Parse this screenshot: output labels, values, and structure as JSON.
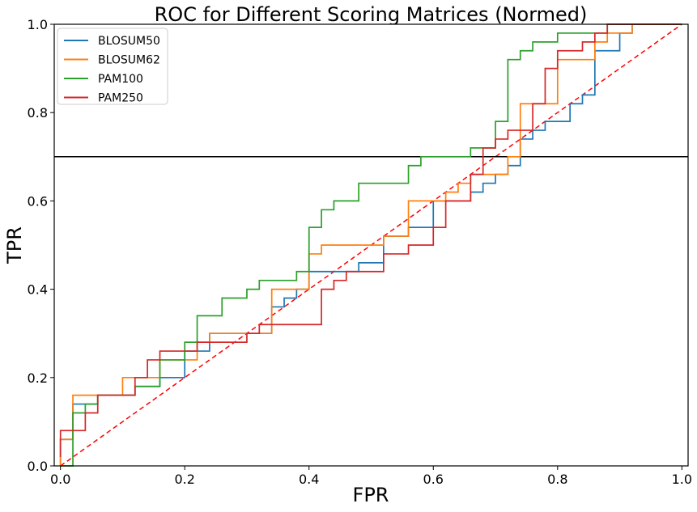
{
  "chart_data": {
    "type": "line",
    "title": "ROC for Different Scoring Matrices (Normed)",
    "xlabel": "FPR",
    "ylabel": "TPR",
    "xlim": [
      -0.01,
      1.01
    ],
    "ylim": [
      0.0,
      1.0
    ],
    "x_ticks": [
      0.0,
      0.2,
      0.4,
      0.6,
      0.8,
      1.0
    ],
    "y_ticks": [
      0.0,
      0.2,
      0.4,
      0.6,
      0.8,
      1.0
    ],
    "x_tick_labels": [
      "0.0",
      "0.2",
      "0.4",
      "0.6",
      "0.8",
      "1.0"
    ],
    "y_tick_labels": [
      "0.0",
      "0.2",
      "0.4",
      "0.6",
      "0.8",
      "1.0"
    ],
    "grid": false,
    "legend_position": "top-left",
    "series": [
      {
        "name": "BLOSUM50",
        "color": "#1f77b4",
        "x": [
          0.0,
          0.0,
          0.02,
          0.02,
          0.06,
          0.06,
          0.12,
          0.12,
          0.14,
          0.14,
          0.16,
          0.16,
          0.2,
          0.2,
          0.24,
          0.24,
          0.32,
          0.32,
          0.34,
          0.34,
          0.36,
          0.36,
          0.38,
          0.38,
          0.4,
          0.4,
          0.48,
          0.48,
          0.52,
          0.52,
          0.56,
          0.56,
          0.6,
          0.6,
          0.66,
          0.66,
          0.68,
          0.68,
          0.7,
          0.7,
          0.72,
          0.72,
          0.74,
          0.74,
          0.76,
          0.76,
          0.78,
          0.78,
          0.82,
          0.82,
          0.84,
          0.84,
          0.86,
          0.86,
          0.9,
          0.9,
          0.92,
          0.92,
          1.0
        ],
        "y": [
          0.0,
          0.06,
          0.06,
          0.14,
          0.14,
          0.16,
          0.16,
          0.18,
          0.18,
          0.18,
          0.18,
          0.2,
          0.2,
          0.26,
          0.26,
          0.3,
          0.3,
          0.3,
          0.3,
          0.36,
          0.36,
          0.38,
          0.38,
          0.4,
          0.4,
          0.44,
          0.44,
          0.46,
          0.46,
          0.52,
          0.52,
          0.54,
          0.54,
          0.6,
          0.6,
          0.62,
          0.62,
          0.64,
          0.64,
          0.66,
          0.66,
          0.68,
          0.68,
          0.74,
          0.74,
          0.76,
          0.76,
          0.78,
          0.78,
          0.82,
          0.82,
          0.84,
          0.84,
          0.94,
          0.94,
          0.98,
          0.98,
          1.0,
          1.0
        ]
      },
      {
        "name": "BLOSUM62",
        "color": "#ff7f0e",
        "x": [
          0.0,
          0.0,
          0.02,
          0.02,
          0.06,
          0.06,
          0.1,
          0.1,
          0.16,
          0.16,
          0.22,
          0.22,
          0.24,
          0.24,
          0.34,
          0.34,
          0.4,
          0.4,
          0.42,
          0.42,
          0.52,
          0.52,
          0.56,
          0.56,
          0.62,
          0.62,
          0.64,
          0.64,
          0.66,
          0.66,
          0.72,
          0.72,
          0.74,
          0.74,
          0.8,
          0.8,
          0.86,
          0.86,
          0.88,
          0.88,
          0.92,
          0.92,
          1.0
        ],
        "y": [
          0.0,
          0.06,
          0.06,
          0.16,
          0.16,
          0.16,
          0.16,
          0.2,
          0.2,
          0.24,
          0.24,
          0.28,
          0.28,
          0.3,
          0.3,
          0.4,
          0.4,
          0.48,
          0.48,
          0.5,
          0.5,
          0.52,
          0.52,
          0.6,
          0.6,
          0.62,
          0.62,
          0.64,
          0.64,
          0.66,
          0.66,
          0.7,
          0.7,
          0.82,
          0.82,
          0.92,
          0.92,
          0.96,
          0.96,
          0.98,
          0.98,
          1.0,
          1.0
        ]
      },
      {
        "name": "PAM100",
        "color": "#2ca02c",
        "x": [
          0.0,
          0.02,
          0.02,
          0.04,
          0.04,
          0.06,
          0.06,
          0.12,
          0.12,
          0.14,
          0.14,
          0.16,
          0.16,
          0.2,
          0.2,
          0.22,
          0.22,
          0.26,
          0.26,
          0.3,
          0.3,
          0.32,
          0.32,
          0.38,
          0.38,
          0.4,
          0.4,
          0.42,
          0.42,
          0.44,
          0.44,
          0.48,
          0.48,
          0.56,
          0.56,
          0.58,
          0.58,
          0.66,
          0.66,
          0.7,
          0.7,
          0.72,
          0.72,
          0.74,
          0.74,
          0.76,
          0.76,
          0.8,
          0.8,
          0.86,
          0.86,
          0.88,
          0.88,
          1.0
        ],
        "y": [
          0.0,
          0.0,
          0.12,
          0.12,
          0.14,
          0.14,
          0.16,
          0.16,
          0.18,
          0.18,
          0.18,
          0.18,
          0.24,
          0.24,
          0.28,
          0.28,
          0.34,
          0.34,
          0.38,
          0.38,
          0.4,
          0.4,
          0.42,
          0.42,
          0.44,
          0.44,
          0.54,
          0.54,
          0.58,
          0.58,
          0.6,
          0.6,
          0.64,
          0.64,
          0.68,
          0.68,
          0.7,
          0.7,
          0.72,
          0.72,
          0.78,
          0.78,
          0.92,
          0.92,
          0.94,
          0.94,
          0.96,
          0.96,
          0.98,
          0.98,
          0.98,
          0.98,
          1.0,
          1.0
        ]
      },
      {
        "name": "PAM250",
        "color": "#d62728",
        "x": [
          0.0,
          0.0,
          0.04,
          0.04,
          0.06,
          0.06,
          0.12,
          0.12,
          0.14,
          0.14,
          0.16,
          0.16,
          0.22,
          0.22,
          0.3,
          0.3,
          0.32,
          0.32,
          0.42,
          0.42,
          0.44,
          0.44,
          0.46,
          0.46,
          0.52,
          0.52,
          0.56,
          0.56,
          0.6,
          0.6,
          0.62,
          0.62,
          0.66,
          0.66,
          0.68,
          0.68,
          0.7,
          0.7,
          0.72,
          0.72,
          0.76,
          0.76,
          0.78,
          0.78,
          0.8,
          0.8,
          0.84,
          0.84,
          0.86,
          0.86,
          0.88,
          0.88,
          1.0
        ],
        "y": [
          0.02,
          0.08,
          0.08,
          0.12,
          0.12,
          0.16,
          0.16,
          0.2,
          0.2,
          0.24,
          0.24,
          0.26,
          0.26,
          0.28,
          0.28,
          0.3,
          0.3,
          0.32,
          0.32,
          0.4,
          0.4,
          0.42,
          0.42,
          0.44,
          0.44,
          0.48,
          0.48,
          0.5,
          0.5,
          0.54,
          0.54,
          0.6,
          0.6,
          0.66,
          0.66,
          0.72,
          0.72,
          0.74,
          0.74,
          0.76,
          0.76,
          0.82,
          0.82,
          0.9,
          0.9,
          0.94,
          0.94,
          0.96,
          0.96,
          0.98,
          0.98,
          1.0,
          1.0
        ]
      }
    ],
    "reference_lines": [
      {
        "kind": "diagonal",
        "x": [
          0.0,
          1.0
        ],
        "y": [
          0.0,
          1.0
        ],
        "color": "#ff0000",
        "style": "dashed"
      },
      {
        "kind": "horizontal",
        "y": 0.7,
        "color": "#000000",
        "style": "solid"
      }
    ]
  }
}
